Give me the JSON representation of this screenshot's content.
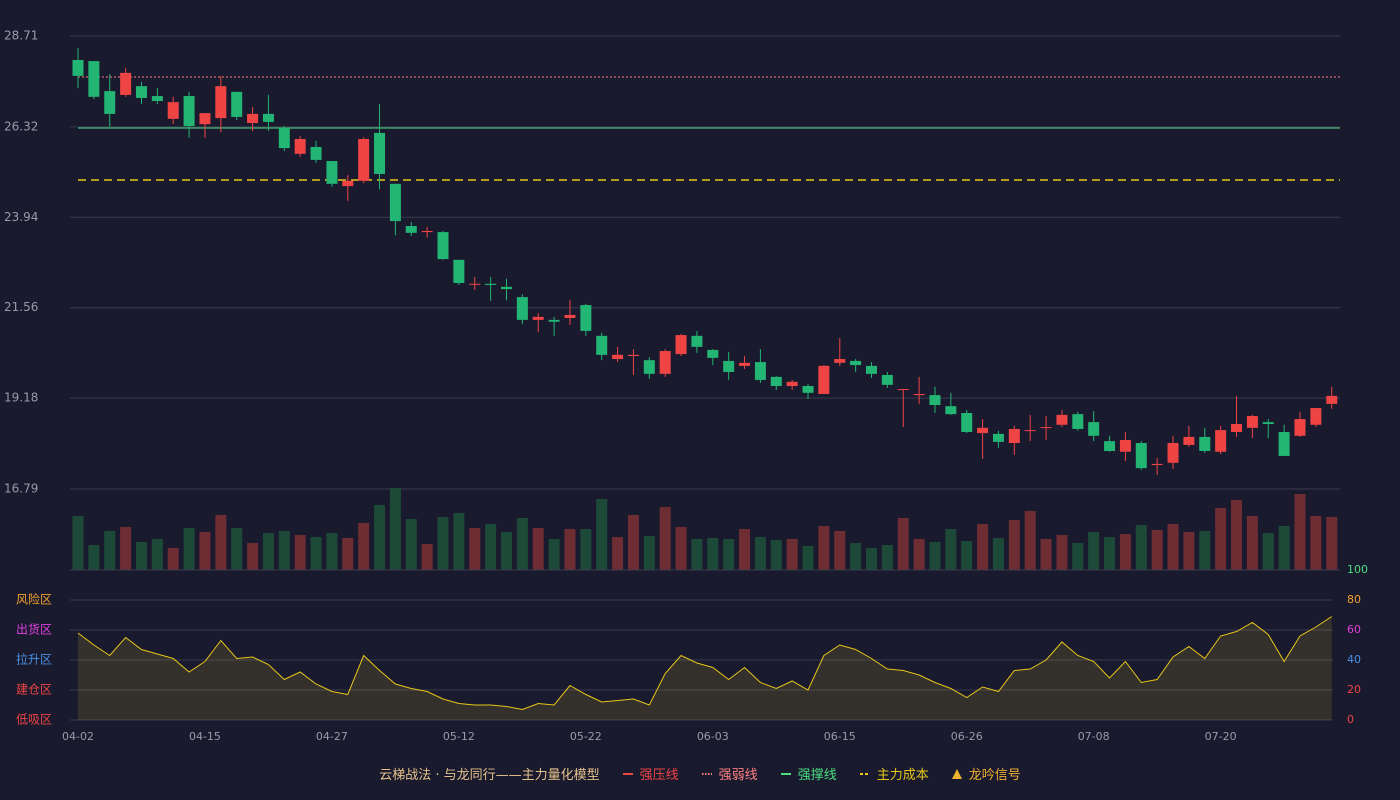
{
  "chart_data": {
    "type": "candlestick",
    "categories": [
      "04-02",
      null,
      null,
      null,
      null,
      null,
      null,
      null,
      "04-15",
      null,
      null,
      null,
      null,
      null,
      null,
      null,
      "04-27",
      null,
      null,
      null,
      null,
      null,
      null,
      null,
      "05-12",
      null,
      null,
      null,
      null,
      null,
      null,
      null,
      "05-22",
      null,
      null,
      null,
      null,
      null,
      null,
      null,
      "06-03",
      null,
      null,
      null,
      null,
      null,
      null,
      null,
      "06-15",
      null,
      null,
      null,
      null,
      null,
      null,
      null,
      "06-26",
      null,
      null,
      null,
      null,
      null,
      null,
      null,
      "07-08",
      null,
      null,
      null,
      null,
      null,
      null,
      null,
      "07-20",
      null,
      null,
      null,
      null,
      null,
      null,
      null
    ],
    "open": [
      28.08,
      28.05,
      27.26,
      27.16,
      27.39,
      27.13,
      26.53,
      27.13,
      26.39,
      26.55,
      27.24,
      26.42,
      26.66,
      26.29,
      25.61,
      25.79,
      25.42,
      24.76,
      24.9,
      26.16,
      24.82,
      23.71,
      23.55,
      23.55,
      22.82,
      22.19,
      22.19,
      22.11,
      21.84,
      21.24,
      21.24,
      21.29,
      21.63,
      20.82,
      20.21,
      20.29,
      20.18,
      19.82,
      20.34,
      20.82,
      20.45,
      20.16,
      20.03,
      20.13,
      19.74,
      19.5,
      19.5,
      19.29,
      20.11,
      20.16,
      20.03,
      19.79,
      19.4,
      19.26,
      19.26,
      18.97,
      18.79,
      18.26,
      18.24,
      18.0,
      18.32,
      18.4,
      18.48,
      18.76,
      18.55,
      18.05,
      17.77,
      18.0,
      17.42,
      17.48,
      17.95,
      18.16,
      17.77,
      18.29,
      18.4,
      18.55,
      18.29,
      18.19,
      18.48,
      19.03
    ],
    "high": [
      28.39,
      28.05,
      27.71,
      27.87,
      27.5,
      27.34,
      27.11,
      27.24,
      26.68,
      27.66,
      27.24,
      26.84,
      27.16,
      26.34,
      26.08,
      25.95,
      25.42,
      25.05,
      26.05,
      26.92,
      24.82,
      23.82,
      23.69,
      23.58,
      22.82,
      22.37,
      22.37,
      22.32,
      21.92,
      21.42,
      21.32,
      21.76,
      21.66,
      20.9,
      20.53,
      20.47,
      20.26,
      20.47,
      20.87,
      20.95,
      20.47,
      20.4,
      20.29,
      20.47,
      19.76,
      19.66,
      19.55,
      20.05,
      20.76,
      20.21,
      20.13,
      19.87,
      19.42,
      19.74,
      19.48,
      19.32,
      18.87,
      18.63,
      18.32,
      18.45,
      18.74,
      18.71,
      18.87,
      18.82,
      18.84,
      18.19,
      18.29,
      18.05,
      17.61,
      18.19,
      18.45,
      18.4,
      18.45,
      19.24,
      18.74,
      18.63,
      18.48,
      18.82,
      18.92,
      19.48
    ],
    "low": [
      27.34,
      27.05,
      26.32,
      27.11,
      26.92,
      26.92,
      26.39,
      26.03,
      26.03,
      26.18,
      26.5,
      26.21,
      26.21,
      25.68,
      25.53,
      25.37,
      24.74,
      24.37,
      24.84,
      24.68,
      23.47,
      23.45,
      23.4,
      22.82,
      22.16,
      22.03,
      21.74,
      21.76,
      21.13,
      20.92,
      20.82,
      21.11,
      20.82,
      20.18,
      20.13,
      19.79,
      19.69,
      19.74,
      20.29,
      20.37,
      20.05,
      19.66,
      19.95,
      19.58,
      19.4,
      19.4,
      19.16,
      19.29,
      20.03,
      19.87,
      19.71,
      19.45,
      18.42,
      19.03,
      18.79,
      18.74,
      18.26,
      17.58,
      17.87,
      17.69,
      18.05,
      18.08,
      18.42,
      18.32,
      18.05,
      17.77,
      17.53,
      17.29,
      17.16,
      17.32,
      17.9,
      17.74,
      17.71,
      18.16,
      18.13,
      18.13,
      17.66,
      18.16,
      18.42,
      18.9
    ],
    "close": [
      27.66,
      27.11,
      26.66,
      27.74,
      27.08,
      27.0,
      26.97,
      26.34,
      26.68,
      27.39,
      26.58,
      26.66,
      26.45,
      25.76,
      26.0,
      25.45,
      24.82,
      24.9,
      26.0,
      25.08,
      23.84,
      23.53,
      23.58,
      22.84,
      22.21,
      22.19,
      22.16,
      22.05,
      21.24,
      21.32,
      21.19,
      21.37,
      20.95,
      20.32,
      20.32,
      20.32,
      19.82,
      20.42,
      20.84,
      20.53,
      20.24,
      19.87,
      20.11,
      19.66,
      19.5,
      19.61,
      19.32,
      20.03,
      20.21,
      20.05,
      19.82,
      19.53,
      19.42,
      19.29,
      19.0,
      18.76,
      18.29,
      18.4,
      18.03,
      18.37,
      18.34,
      18.42,
      18.74,
      18.37,
      18.19,
      17.79,
      18.08,
      17.34,
      17.45,
      18.0,
      18.16,
      17.79,
      18.34,
      18.5,
      18.71,
      18.5,
      17.66,
      18.63,
      18.92,
      19.24
    ],
    "ylim": [
      16.79,
      28.71
    ],
    "yticks": [
      28.71,
      26.32,
      23.94,
      21.56,
      19.18,
      16.79
    ],
    "up_color": "#ef4444",
    "down_color": "#22b573",
    "volume": [
      54,
      25,
      39,
      43,
      28,
      31,
      22,
      42,
      38,
      55,
      42,
      27,
      37,
      39,
      35,
      33,
      37,
      32,
      47,
      65,
      82,
      51,
      26,
      53,
      57,
      42,
      46,
      38,
      52,
      42,
      31,
      41,
      41,
      71,
      33,
      55,
      34,
      63,
      43,
      31,
      32,
      31,
      41,
      33,
      30,
      31,
      24,
      44,
      39,
      27,
      22,
      25,
      52,
      31,
      28,
      41,
      29,
      46,
      32,
      50,
      59,
      31,
      35,
      27,
      38,
      33,
      36,
      45,
      40,
      46,
      38,
      39,
      62,
      70,
      54,
      37,
      44,
      76,
      54,
      53
    ],
    "volume_up_color": "#6e2d33",
    "volume_down_color": "#1d4a38",
    "lines": [
      {
        "name": "强压线",
        "color": "#ef4444",
        "style": "solid"
      },
      {
        "name": "强弱线",
        "color": "#ff8080",
        "style": "dotted",
        "value": 27.63
      },
      {
        "name": "强撑线",
        "color": "#4ade80",
        "style": "solid",
        "value": 26.29
      },
      {
        "name": "主力成本",
        "color": "#e6c619",
        "style": "dashed",
        "value": 24.92
      },
      {
        "name": "龙吟信号",
        "color": "#f0b030",
        "style": "triangle"
      }
    ],
    "legend_title": "云梯战法 · 与龙同行——主力量化模型",
    "oscillator": {
      "values": [
        58,
        50,
        43,
        55,
        47,
        44,
        41,
        32,
        39,
        53,
        41,
        42,
        37,
        27,
        32,
        24,
        19,
        17,
        43,
        33,
        24,
        21,
        19,
        14,
        11,
        10,
        10,
        9,
        7,
        11,
        10,
        23,
        17,
        12,
        13,
        14,
        10,
        31,
        43,
        38,
        35,
        27,
        35,
        25,
        21,
        26,
        20,
        43,
        50,
        47,
        41,
        34,
        33,
        30,
        25,
        21,
        15,
        22,
        19,
        33,
        34,
        40,
        52,
        43,
        39,
        28,
        39,
        25,
        27,
        42,
        49,
        41,
        56,
        59,
        65,
        57,
        39,
        56,
        62,
        69
      ],
      "color": "#e6c619",
      "ylim": [
        0,
        100
      ],
      "yticks": [
        0,
        20,
        40,
        60,
        80,
        100
      ],
      "ytick_colors": [
        "#ef4444",
        "#ef4444",
        "#4a90e2",
        "#e040e0",
        "#f0a030",
        "#4ade80"
      ],
      "zones": [
        {
          "name": "风险区",
          "value": 80,
          "color": "#f0a030"
        },
        {
          "name": "出货区",
          "value": 60,
          "color": "#e040e0"
        },
        {
          "name": "拉升区",
          "value": 40,
          "color": "#4a90e2"
        },
        {
          "name": "建仓区",
          "value": 20,
          "color": "#ef4444"
        },
        {
          "name": "低吸区",
          "value": 0,
          "color": "#ef4444"
        }
      ]
    }
  }
}
